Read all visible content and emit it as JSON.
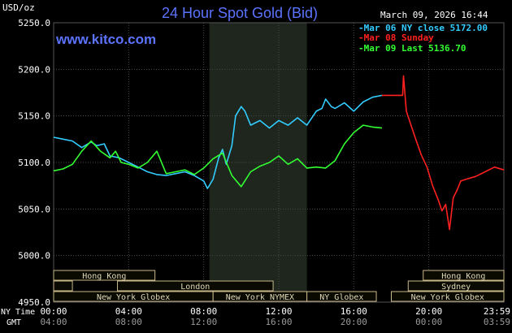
{
  "header": {
    "unit": "USD/oz",
    "title": "24 Hour Spot Gold (Bid)",
    "timestamp": "March 09, 2026 16:44",
    "brand": "www.kitco.com"
  },
  "legend": [
    {
      "text": "-Mar 06 NY close 5172.00",
      "color": "#33ccff"
    },
    {
      "text": "-Mar 08 Sunday",
      "color": "#ff2020"
    },
    {
      "text": "-Mar 09 Last 5136.70",
      "color": "#33ff33"
    }
  ],
  "colors": {
    "background": "#000000",
    "grid": "#4a4a4a",
    "axis_text": "#ffffff",
    "gmt_text": "#9a9a9a",
    "title": "#5b73ff",
    "brand": "#5b73ff",
    "nymex_band": "#1e261e",
    "session_fill": "#0a0a00",
    "session_border": "#c8b88a",
    "session_text": "#e0d9b8"
  },
  "axis_labels": {
    "ny_time": "NY Time",
    "gmt": "GMT"
  },
  "chart_data": {
    "type": "line",
    "ylabel": "USD/oz",
    "ylim": [
      4950,
      5250
    ],
    "xlim": [
      0,
      24
    ],
    "y_ticks": [
      "5250.0",
      "5200.0",
      "5150.0",
      "5100.0",
      "5050.0",
      "5000.0",
      "4950.0"
    ],
    "y_tick_values": [
      5250,
      5200,
      5150,
      5100,
      5050,
      5000,
      4950
    ],
    "x_ticks_ny": [
      "00:00",
      "04:00",
      "08:00",
      "12:00",
      "16:00",
      "20:00",
      "23:59"
    ],
    "x_ticks_gmt": [
      "04:00",
      "08:00",
      "12:00",
      "16:00",
      "20:00",
      "00:00",
      "03:59"
    ],
    "x_tick_hours": [
      0,
      4,
      8,
      12,
      16,
      20,
      24
    ],
    "nymex_band_hours": [
      8.3,
      13.5
    ],
    "series": [
      {
        "name": "Mar 06 NY close 5172.00",
        "color": "#33ccff",
        "x": [
          0,
          0.5,
          1.0,
          1.5,
          2.0,
          2.3,
          2.7,
          3.0,
          3.5,
          4.0,
          4.5,
          5.0,
          5.5,
          6.0,
          6.5,
          7.0,
          7.5,
          8.0,
          8.2,
          8.5,
          8.8,
          9.0,
          9.2,
          9.5,
          9.7,
          10.0,
          10.2,
          10.5,
          11.0,
          11.5,
          12.0,
          12.5,
          13.0,
          13.5,
          14.0,
          14.3,
          14.5,
          14.8,
          15.0,
          15.5,
          16.0,
          16.5,
          17.0,
          17.5
        ],
        "y": [
          5127,
          5125,
          5123,
          5116,
          5122,
          5118,
          5120,
          5107,
          5105,
          5100,
          5095,
          5090,
          5087,
          5086,
          5088,
          5090,
          5086,
          5080,
          5072,
          5082,
          5105,
          5114,
          5098,
          5118,
          5150,
          5160,
          5155,
          5140,
          5145,
          5137,
          5145,
          5140,
          5148,
          5140,
          5155,
          5158,
          5168,
          5160,
          5158,
          5164,
          5155,
          5165,
          5170,
          5172
        ]
      },
      {
        "name": "Mar 08 Sunday",
        "color": "#ff2020",
        "x": [
          17.5,
          18.6,
          18.65,
          18.8,
          19.0,
          19.3,
          19.6,
          19.9,
          20.2,
          20.5,
          20.7,
          20.9,
          21.1,
          21.3,
          21.5,
          21.7,
          22.0,
          22.5,
          23.0,
          23.5,
          24.0
        ],
        "y": [
          5172,
          5172,
          5193,
          5155,
          5143,
          5125,
          5108,
          5095,
          5075,
          5060,
          5048,
          5055,
          5028,
          5062,
          5070,
          5080,
          5082,
          5085,
          5090,
          5095,
          5092
        ]
      },
      {
        "name": "Mar 09 Last 5136.70",
        "color": "#33ff33",
        "x": [
          0,
          0.5,
          1.0,
          1.5,
          2.0,
          2.5,
          3.0,
          3.3,
          3.6,
          4.0,
          4.5,
          5.0,
          5.5,
          6.0,
          6.5,
          7.0,
          7.5,
          8.0,
          8.5,
          9.0,
          9.5,
          10.0,
          10.5,
          11.0,
          11.5,
          12.0,
          12.5,
          13.0,
          13.5,
          14.0,
          14.5,
          15.0,
          15.5,
          16.0,
          16.5,
          17.0,
          17.5
        ],
        "y": [
          5091,
          5093,
          5098,
          5112,
          5123,
          5112,
          5105,
          5112,
          5100,
          5098,
          5094,
          5100,
          5112,
          5088,
          5090,
          5092,
          5087,
          5094,
          5104,
          5110,
          5086,
          5074,
          5090,
          5096,
          5100,
          5107,
          5098,
          5104,
          5094,
          5095,
          5094,
          5102,
          5120,
          5132,
          5140,
          5138,
          5137
        ]
      }
    ],
    "sessions": [
      {
        "label": "Hong Kong",
        "start_h": 0,
        "end_h": 5.4,
        "row": 0
      },
      {
        "label": "",
        "start_h": 0,
        "end_h": 1.0,
        "row": 1
      },
      {
        "label": "London",
        "start_h": 3.4,
        "end_h": 11.7,
        "row": 1
      },
      {
        "label": "New York Globex",
        "start_h": 0,
        "end_h": 8.5,
        "row": 2
      },
      {
        "label": "New York NYMEX",
        "start_h": 8.5,
        "end_h": 13.5,
        "row": 2
      },
      {
        "label": "NY Globex",
        "start_h": 13.5,
        "end_h": 17.2,
        "row": 2
      },
      {
        "label": "Hong Kong",
        "start_h": 19.7,
        "end_h": 24,
        "row": 0
      },
      {
        "label": "Sydney",
        "start_h": 18.9,
        "end_h": 24,
        "row": 1
      },
      {
        "label": "New York Globex",
        "start_h": 18.0,
        "end_h": 24,
        "row": 2
      }
    ]
  }
}
